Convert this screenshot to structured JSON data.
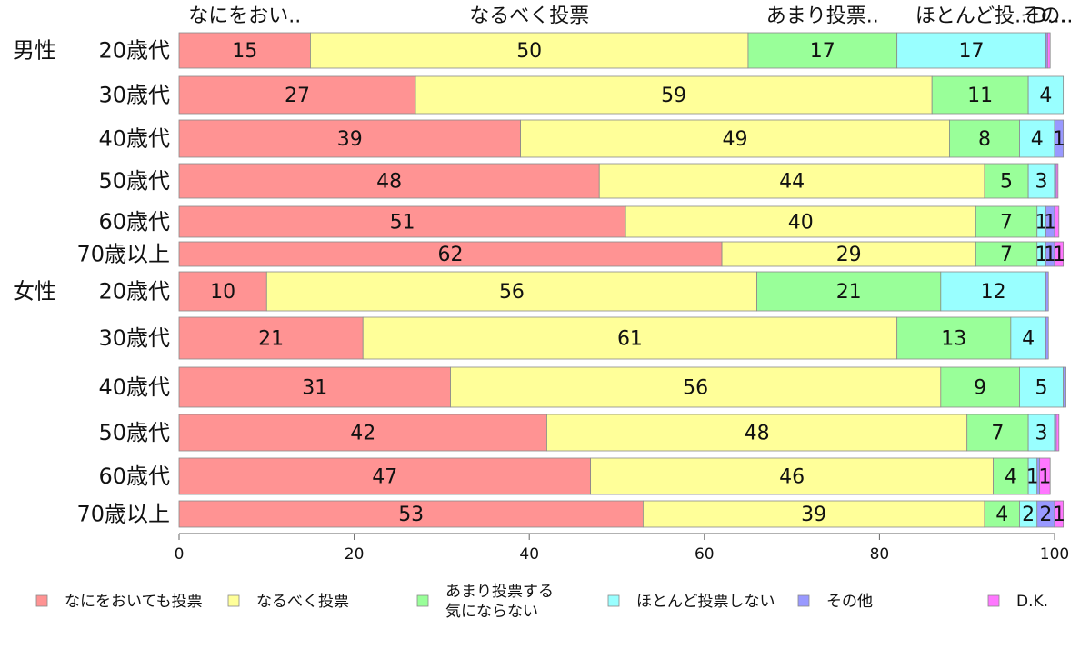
{
  "chart_data": {
    "type": "bar",
    "orientation": "horizontal",
    "stacked": true,
    "xlim": [
      0,
      100
    ],
    "xticks": [
      0,
      20,
      40,
      60,
      80,
      100
    ],
    "grid": false,
    "legend_position": "bottom",
    "top_labels": [
      "なにをおい..",
      "なるべく投票",
      "あまり投票..",
      "ほとんど投..",
      "その..",
      "D..."
    ],
    "groups": [
      {
        "label": "男性",
        "start_row": 0
      },
      {
        "label": "女性",
        "start_row": 6
      }
    ],
    "rows": [
      {
        "group": "男性",
        "label": "20歳代",
        "values": [
          15,
          50,
          17,
          17,
          0.2,
          0.3
        ]
      },
      {
        "group": "男性",
        "label": "30歳代",
        "values": [
          27,
          59,
          11,
          4,
          0,
          0
        ]
      },
      {
        "group": "男性",
        "label": "40歳代",
        "values": [
          39,
          49,
          8,
          4,
          1,
          0
        ]
      },
      {
        "group": "男性",
        "label": "50歳代",
        "values": [
          48,
          44,
          5,
          3,
          0.2,
          0.2
        ]
      },
      {
        "group": "男性",
        "label": "60歳代",
        "values": [
          51,
          40,
          7,
          1,
          1,
          0.5
        ]
      },
      {
        "group": "男性",
        "label": "70歳以上",
        "values": [
          62,
          29,
          7,
          1,
          1,
          1
        ]
      },
      {
        "group": "女性",
        "label": "20歳代",
        "values": [
          10,
          56,
          21,
          12,
          0.3,
          0
        ]
      },
      {
        "group": "女性",
        "label": "30歳代",
        "values": [
          21,
          61,
          13,
          4,
          0.3,
          0
        ]
      },
      {
        "group": "女性",
        "label": "40歳代",
        "values": [
          31,
          56,
          9,
          5,
          0.3,
          0
        ]
      },
      {
        "group": "女性",
        "label": "50歳代",
        "values": [
          42,
          48,
          7,
          3,
          0.2,
          0.3
        ]
      },
      {
        "group": "女性",
        "label": "60歳代",
        "values": [
          47,
          46,
          4,
          1,
          0.3,
          1.2
        ]
      },
      {
        "group": "女性",
        "label": "70歳以上",
        "values": [
          53,
          39,
          4,
          2,
          2,
          1
        ]
      }
    ],
    "value_labels": [
      [
        "15",
        "50",
        "17",
        "17",
        "",
        ""
      ],
      [
        "27",
        "59",
        "11",
        "4",
        "",
        ""
      ],
      [
        "39",
        "49",
        "8",
        "4",
        "1",
        ""
      ],
      [
        "48",
        "44",
        "5",
        "3",
        "",
        ""
      ],
      [
        "51",
        "40",
        "7",
        "1",
        "1",
        ""
      ],
      [
        "62",
        "29",
        "7",
        "1",
        "1",
        "1"
      ],
      [
        "10",
        "56",
        "21",
        "12",
        "",
        ""
      ],
      [
        "21",
        "61",
        "13",
        "4",
        "",
        ""
      ],
      [
        "31",
        "56",
        "9",
        "5",
        "",
        ""
      ],
      [
        "42",
        "48",
        "7",
        "3",
        "",
        ""
      ],
      [
        "47",
        "46",
        "4",
        "1",
        "",
        "1"
      ],
      [
        "53",
        "39",
        "4",
        "2",
        "2",
        "1"
      ]
    ],
    "series": [
      {
        "name": "なにをおいても投票",
        "color": "#ff9393"
      },
      {
        "name": "なるべく投票",
        "color": "#ffff99"
      },
      {
        "name": "あまり投票する気にならない",
        "color": "#99ff99"
      },
      {
        "name": "ほとんど投票しない",
        "color": "#99ffff"
      },
      {
        "name": "その他",
        "color": "#9999ff"
      },
      {
        "name": "D.K.",
        "color": "#ff77ff"
      }
    ],
    "legend_lines": [
      [
        "なにをおいても投票"
      ],
      [
        "なるべく投票"
      ],
      [
        "あまり投票する",
        "気にならない"
      ],
      [
        "ほとんど投票しない"
      ],
      [
        "その他"
      ],
      [
        "D.K."
      ]
    ]
  }
}
